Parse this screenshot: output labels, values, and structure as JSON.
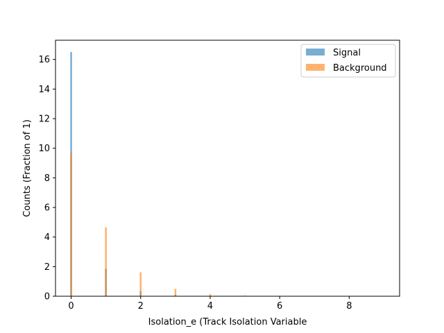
{
  "chart_data": {
    "type": "bar",
    "xlabel": "Isolation_e (Track Isolation Variable",
    "ylabel": "Counts (Fraction of 1)",
    "xlim": [
      -0.45,
      9.45
    ],
    "ylim": [
      0,
      17.3
    ],
    "xticks": [
      0,
      2,
      4,
      6,
      8
    ],
    "yticks": [
      0,
      2,
      4,
      6,
      8,
      10,
      12,
      14,
      16
    ],
    "grid": false,
    "legend_position": "top-right",
    "bin_width": 0.05,
    "series": [
      {
        "name": "Signal",
        "color": "#1f77b4",
        "opacity": 0.6,
        "x": [
          0,
          1,
          2,
          3,
          4
        ],
        "values": [
          16.5,
          1.85,
          0.35,
          0.08,
          0.03
        ]
      },
      {
        "name": "Background",
        "color": "#ff7f0e",
        "opacity": 0.6,
        "x": [
          0,
          1,
          2,
          3,
          4,
          5
        ],
        "values": [
          9.7,
          4.65,
          1.62,
          0.5,
          0.15,
          0.05
        ]
      }
    ]
  }
}
